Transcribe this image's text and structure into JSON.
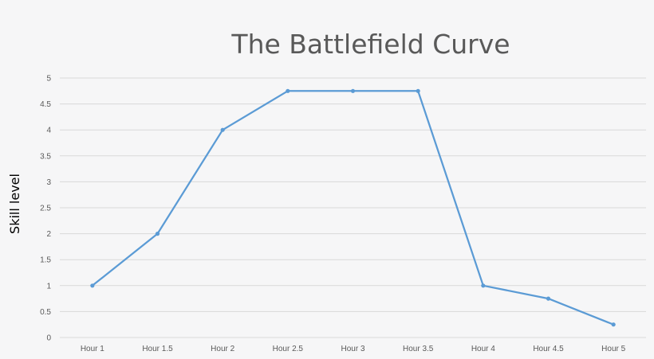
{
  "chart_data": {
    "type": "line",
    "title": "The Battlefield Curve",
    "xlabel": "",
    "ylabel": "Skill level",
    "categories": [
      "Hour 1",
      "Hour 1.5",
      "Hour 2",
      "Hour 2.5",
      "Hour 3",
      "Hour 3.5",
      "Hour 4",
      "Hour 4.5",
      "Hour 5"
    ],
    "series": [
      {
        "values": [
          1,
          2,
          4,
          4.75,
          4.75,
          4.75,
          1,
          0.75,
          0.25
        ],
        "color": "#5b9bd5"
      }
    ],
    "ylim": [
      0,
      5
    ],
    "yticks": [
      "0",
      "0.5",
      "1",
      "1.5",
      "2",
      "2.5",
      "3",
      "3.5",
      "4",
      "4.5",
      "5"
    ],
    "grid": true,
    "legend": "none"
  }
}
